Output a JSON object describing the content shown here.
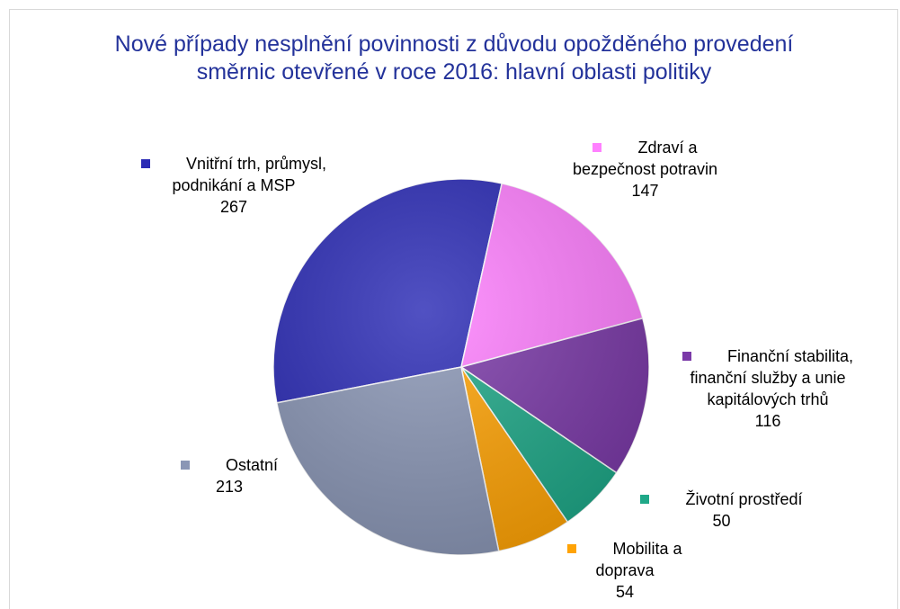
{
  "chart_data": {
    "type": "pie",
    "title": "Nové případy nesplnění povinnosti z důvodu opožděného provedení směrnic otevřené v roce 2016: hlavní oblasti politiky",
    "categories": [
      "Vnitřní trh, průmysl, podnikání a MSP",
      "Zdraví a bezpečnost potravin",
      "Finanční stabilita, finanční služby a unie kapitálových trhů",
      "Životní prostředí",
      "Mobilita a doprava",
      "Ostatní"
    ],
    "values": [
      267,
      147,
      116,
      50,
      54,
      213
    ],
    "colors": [
      "#2b2bb5",
      "#ff80ff",
      "#7b3aa8",
      "#1fa888",
      "#ffa305",
      "#8a96b5"
    ]
  }
}
